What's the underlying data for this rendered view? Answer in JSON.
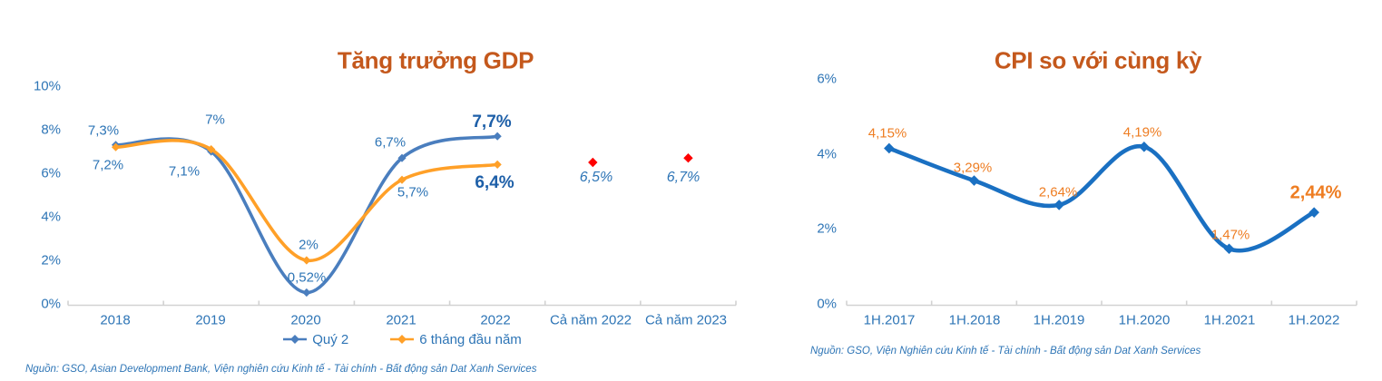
{
  "page": {
    "background": "#FFFFFF"
  },
  "charts": [
    {
      "title": "Tăng trưởng GDP",
      "y_ticks": [
        "10%",
        "8%",
        "6%",
        "4%",
        "2%",
        "0%"
      ],
      "x_ticks": [
        "2018",
        "2019",
        "2020",
        "2021",
        "2022",
        "Cả năm 2022",
        "Cả năm 2023"
      ],
      "source": "Nguồn:  GSO, Asian Development Bank, Viện nghiên cứu Kinh tế - Tài chính - Bất động sản Dat Xanh Services"
    },
    {
      "title": "CPI so với cùng kỳ",
      "y_ticks": [
        "6%",
        "4%",
        "2%",
        "0%"
      ],
      "x_ticks": [
        "1H.2017",
        "1H.2018",
        "1H.2019",
        "1H.2020",
        "1H.2021",
        "1H.2022"
      ],
      "source": "Nguồn:  GSO, Viện Nghiên cứu Kinh tế - Tài chính - Bất động sản Dat Xanh Services"
    }
  ],
  "chart_data": [
    {
      "type": "line",
      "title": "Tăng trưởng GDP",
      "categories": [
        "2018",
        "2019",
        "2020",
        "2021",
        "2022",
        "Cả năm 2022",
        "Cả năm 2023"
      ],
      "series": [
        {
          "name": "Quý 2",
          "values": [
            7.3,
            7.0,
            0.52,
            6.7,
            7.7,
            null,
            null
          ],
          "labels": [
            "7,3%",
            "7%",
            "0,52%",
            "6,7%",
            "7,7%"
          ],
          "color": "#4A7EBE",
          "line": true,
          "marker": "diamond"
        },
        {
          "name": "6 tháng đầu năm",
          "values": [
            7.2,
            7.1,
            2.0,
            5.7,
            6.4,
            null,
            null
          ],
          "labels": [
            "7,2%",
            "7,1%",
            "2%",
            "5,7%",
            "6,4%"
          ],
          "color": "#FFA028",
          "line": true,
          "marker": "diamond"
        },
        {
          "name": "forecast-points",
          "values": [
            null,
            null,
            null,
            null,
            null,
            6.5,
            6.7
          ],
          "labels": [
            "6,5%",
            "6,7%"
          ],
          "color": "#FE0000",
          "line": false,
          "marker": "diamond"
        }
      ],
      "ylim": [
        0,
        10
      ],
      "y_tick_step": 2,
      "grid": false,
      "legend_position": "bottom"
    },
    {
      "type": "line",
      "title": "CPI so với cùng kỳ",
      "categories": [
        "1H.2017",
        "1H.2018",
        "1H.2019",
        "1H.2020",
        "1H.2021",
        "1H.2022"
      ],
      "series": [
        {
          "name": "CPI",
          "values": [
            4.15,
            3.29,
            2.64,
            4.19,
            1.47,
            2.44
          ],
          "labels": [
            "4,15%",
            "3,29%",
            "2,64%",
            "4,19%",
            "1,47%",
            "2,44%"
          ],
          "color": "#1A70C2",
          "line": true,
          "marker": "diamond"
        }
      ],
      "ylim": [
        0,
        6
      ],
      "y_tick_step": 2,
      "grid": false,
      "legend_position": "none"
    }
  ],
  "colors": {
    "title": "#C4581C",
    "axis_label_blue": "#2E75B6",
    "axis_line_gray": "#D2D2D2",
    "gdp_q2_line": "#4A7EBE",
    "gdp_6m_line": "#FFA028",
    "forecast_red": "#FE0000",
    "cpi_line": "#1A70C2",
    "cpi_label_orange": "#EE7D22",
    "bold_label_blue": "#1D5FA8",
    "source_text": "#2E75B6"
  }
}
